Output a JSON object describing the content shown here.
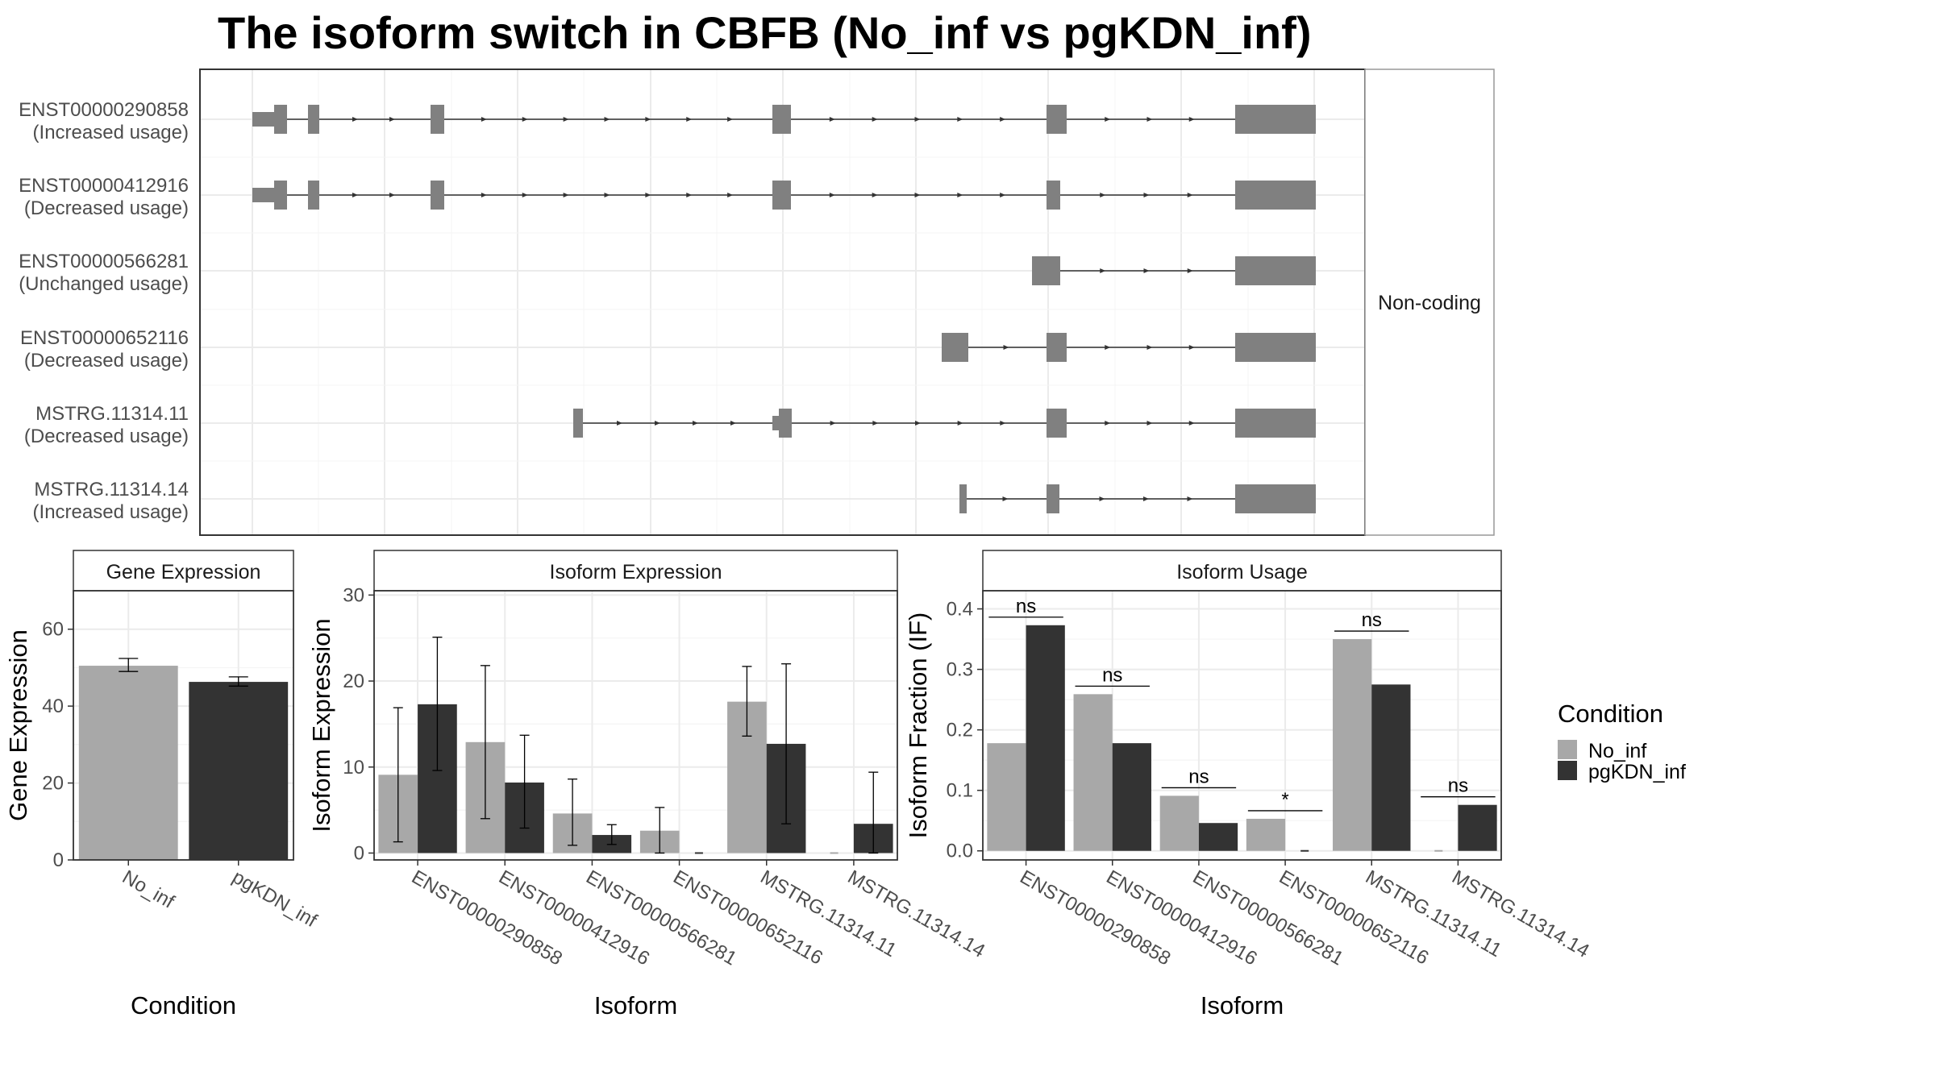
{
  "title": "The isoform switch in CBFB (No_inf vs pgKDN_inf)",
  "colors": {
    "No_inf": "#a8a8a8",
    "pgKDN_inf": "#333333",
    "structure": "#808080",
    "panel_bg": "#ffffff",
    "grid": "#ebebeb",
    "border": "#333333",
    "strip_border": "#666666"
  },
  "structure": {
    "strip_label": "Non-coding",
    "isoforms": [
      {
        "id": "ENST00000290858",
        "usage": "(Increased usage)"
      },
      {
        "id": "ENST00000412916",
        "usage": "(Decreased usage)"
      },
      {
        "id": "ENST00000566281",
        "usage": "(Unchanged usage)"
      },
      {
        "id": "ENST00000652116",
        "usage": "(Decreased usage)"
      },
      {
        "id": "MSTRG.11314.11",
        "usage": "(Decreased usage)"
      },
      {
        "id": "MSTRG.11314.14",
        "usage": "(Increased usage)"
      }
    ]
  },
  "legend": {
    "title": "Condition",
    "entries": [
      "No_inf",
      "pgKDN_inf"
    ]
  },
  "chart_data": [
    {
      "type": "bar",
      "panel": "Gene Expression",
      "xlabel": "Condition",
      "ylabel": "Gene Expression",
      "categories": [
        "No_inf",
        "pgKDN_inf"
      ],
      "values": [
        50.5,
        46.3
      ],
      "err_low": [
        49.0,
        45.2
      ],
      "err_high": [
        52.4,
        47.6
      ],
      "ylim": [
        0,
        70
      ],
      "yticks": [
        0,
        20,
        40,
        60
      ]
    },
    {
      "type": "bar",
      "panel": "Isoform Expression",
      "xlabel": "Isoform",
      "ylabel": "Isoform Expression",
      "categories": [
        "ENST00000290858",
        "ENST00000412916",
        "ENST00000566281",
        "ENST00000652116",
        "MSTRG.11314.11",
        "MSTRG.11314.14"
      ],
      "series": [
        {
          "name": "No_inf",
          "values": [
            9.1,
            12.9,
            4.6,
            2.6,
            17.6,
            0.0
          ],
          "err_low": [
            1.3,
            4.0,
            0.9,
            0.0,
            13.6,
            0.0
          ],
          "err_high": [
            16.9,
            21.8,
            8.6,
            5.3,
            21.7,
            0.0
          ]
        },
        {
          "name": "pgKDN_inf",
          "values": [
            17.3,
            8.2,
            2.1,
            0.0,
            12.7,
            3.4
          ],
          "err_low": [
            9.6,
            2.9,
            1.0,
            0.0,
            3.4,
            0.0
          ],
          "err_high": [
            25.1,
            13.7,
            3.3,
            0.0,
            22.0,
            9.4
          ]
        }
      ],
      "ylim": [
        -0.8,
        30.5
      ],
      "yticks": [
        0,
        10,
        20,
        30
      ]
    },
    {
      "type": "bar",
      "panel": "Isoform Usage",
      "xlabel": "Isoform",
      "ylabel": "Isoform Fraction (IF)",
      "categories": [
        "ENST00000290858",
        "ENST00000412916",
        "ENST00000566281",
        "ENST00000652116",
        "MSTRG.11314.11",
        "MSTRG.11314.14"
      ],
      "series": [
        {
          "name": "No_inf",
          "values": [
            0.178,
            0.259,
            0.091,
            0.053,
            0.35,
            0.0
          ]
        },
        {
          "name": "pgKDN_inf",
          "values": [
            0.373,
            0.178,
            0.046,
            0.0,
            0.275,
            0.076
          ]
        }
      ],
      "significance": [
        "ns",
        "ns",
        "ns",
        "*",
        "ns",
        "ns"
      ],
      "ylim": [
        -0.015,
        0.43
      ],
      "yticks": [
        0.0,
        0.1,
        0.2,
        0.3,
        0.4
      ],
      "ytick_labels": [
        "0.0",
        "0.1",
        "0.2",
        "0.3",
        "0.4"
      ]
    }
  ]
}
